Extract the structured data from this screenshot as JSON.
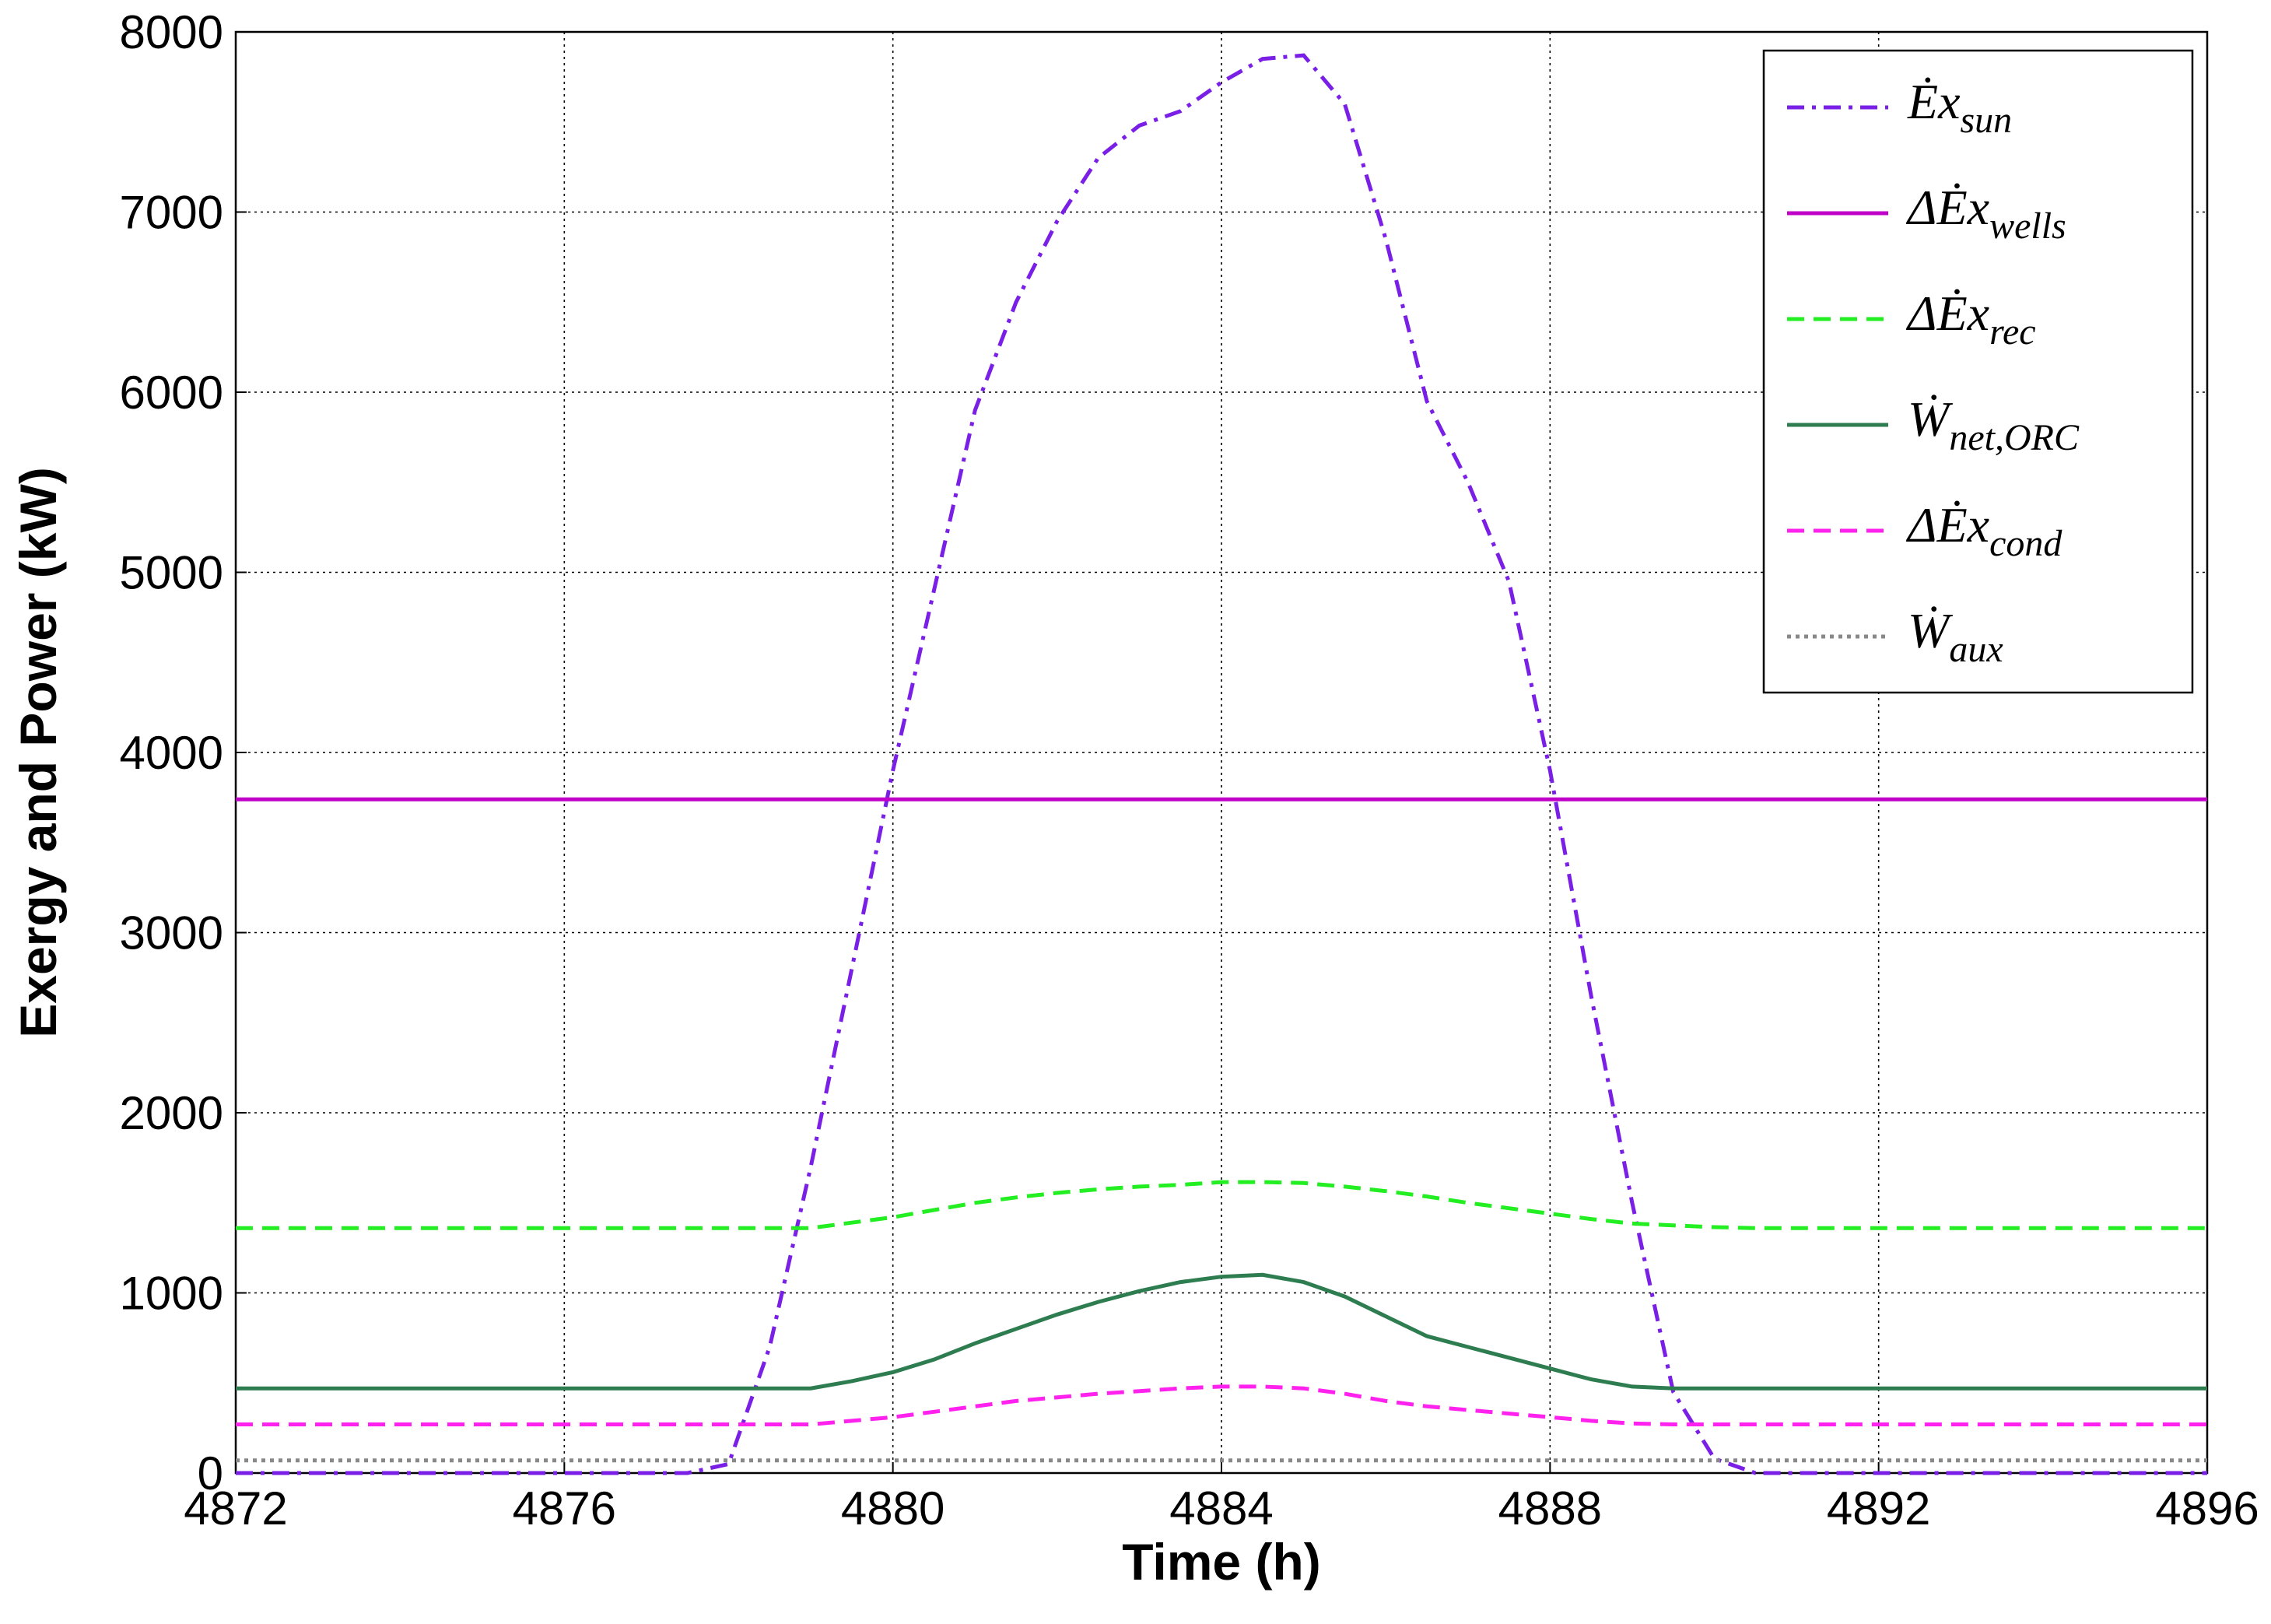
{
  "chart_data": {
    "type": "line",
    "x_label": "Time (h)",
    "y_label": "Exergy and Power (kW)",
    "xlim": [
      4872,
      4896
    ],
    "ylim": [
      0,
      8000
    ],
    "xticks": [
      4872,
      4876,
      4880,
      4884,
      4888,
      4892,
      4896
    ],
    "yticks": [
      0,
      1000,
      2000,
      3000,
      4000,
      5000,
      6000,
      7000,
      8000
    ],
    "grid": true,
    "legend_position": "upper right",
    "x": [
      4872,
      4872.5,
      4873,
      4873.5,
      4874,
      4874.5,
      4875,
      4875.5,
      4876,
      4876.5,
      4877,
      4877.5,
      4878,
      4878.5,
      4879,
      4879.5,
      4880,
      4880.5,
      4881,
      4881.5,
      4882,
      4882.5,
      4883,
      4883.5,
      4884,
      4884.5,
      4885,
      4885.5,
      4886,
      4886.5,
      4887,
      4887.5,
      4888,
      4888.5,
      4889,
      4889.5,
      4890,
      4890.5,
      4891,
      4891.5,
      4892,
      4892.5,
      4893,
      4893.5,
      4894,
      4894.5,
      4895,
      4895.5,
      4896
    ],
    "series": [
      {
        "name": "Ėx_sun",
        "color": "#7a1fe6",
        "linestyle": "dashdot",
        "values": [
          0,
          0,
          0,
          0,
          0,
          0,
          0,
          0,
          0,
          0,
          0,
          0,
          50,
          700,
          1700,
          2800,
          3900,
          4900,
          5900,
          6500,
          6950,
          7300,
          7480,
          7560,
          7720,
          7850,
          7870,
          7600,
          6850,
          5950,
          5500,
          4950,
          3900,
          2650,
          1500,
          450,
          80,
          0,
          0,
          0,
          0,
          0,
          0,
          0,
          0,
          0,
          0,
          0,
          0
        ]
      },
      {
        "name": "ΔĖx_wells",
        "color": "#c000c8",
        "linestyle": "solid",
        "values": [
          3740,
          3740,
          3740,
          3740,
          3740,
          3740,
          3740,
          3740,
          3740,
          3740,
          3740,
          3740,
          3740,
          3740,
          3740,
          3740,
          3740,
          3740,
          3740,
          3740,
          3740,
          3740,
          3740,
          3740,
          3740,
          3740,
          3740,
          3740,
          3740,
          3740,
          3740,
          3740,
          3740,
          3740,
          3740,
          3740,
          3740,
          3740,
          3740,
          3740,
          3740,
          3740,
          3740,
          3740,
          3740,
          3740,
          3740,
          3740,
          3740
        ]
      },
      {
        "name": "ΔĖx_rec",
        "color": "#22ee22",
        "linestyle": "dashed",
        "values": [
          1360,
          1360,
          1360,
          1360,
          1360,
          1360,
          1360,
          1360,
          1360,
          1360,
          1360,
          1360,
          1360,
          1360,
          1360,
          1390,
          1420,
          1460,
          1500,
          1530,
          1555,
          1575,
          1590,
          1600,
          1615,
          1615,
          1610,
          1590,
          1565,
          1535,
          1500,
          1470,
          1440,
          1410,
          1385,
          1375,
          1365,
          1360,
          1360,
          1360,
          1360,
          1360,
          1360,
          1360,
          1360,
          1360,
          1360,
          1360,
          1360
        ]
      },
      {
        "name": "Ẇ_net,ORC",
        "color": "#2e7d50",
        "linestyle": "solid",
        "values": [
          470,
          470,
          470,
          470,
          470,
          470,
          470,
          470,
          470,
          470,
          470,
          470,
          470,
          470,
          470,
          510,
          560,
          630,
          720,
          800,
          880,
          950,
          1010,
          1060,
          1090,
          1100,
          1060,
          980,
          870,
          760,
          700,
          640,
          580,
          520,
          480,
          470,
          470,
          470,
          470,
          470,
          470,
          470,
          470,
          470,
          470,
          470,
          470,
          470,
          470
        ]
      },
      {
        "name": "ΔĖx_cond",
        "color": "#ff22ee",
        "linestyle": "dashed",
        "values": [
          270,
          270,
          270,
          270,
          270,
          270,
          270,
          270,
          270,
          270,
          270,
          270,
          270,
          270,
          270,
          290,
          310,
          340,
          370,
          400,
          420,
          440,
          455,
          470,
          480,
          480,
          470,
          440,
          400,
          370,
          350,
          330,
          310,
          290,
          275,
          270,
          270,
          270,
          270,
          270,
          270,
          270,
          270,
          270,
          270,
          270,
          270,
          270,
          270
        ]
      },
      {
        "name": "Ẇ_aux",
        "color": "#888888",
        "linestyle": "dotted",
        "values": [
          70,
          70,
          70,
          70,
          70,
          70,
          70,
          70,
          70,
          70,
          70,
          70,
          70,
          70,
          70,
          70,
          70,
          70,
          70,
          70,
          70,
          70,
          70,
          70,
          70,
          70,
          70,
          70,
          70,
          70,
          70,
          70,
          70,
          70,
          70,
          70,
          70,
          70,
          70,
          70,
          70,
          70,
          70,
          70,
          70,
          70,
          70,
          70,
          70
        ]
      }
    ]
  }
}
